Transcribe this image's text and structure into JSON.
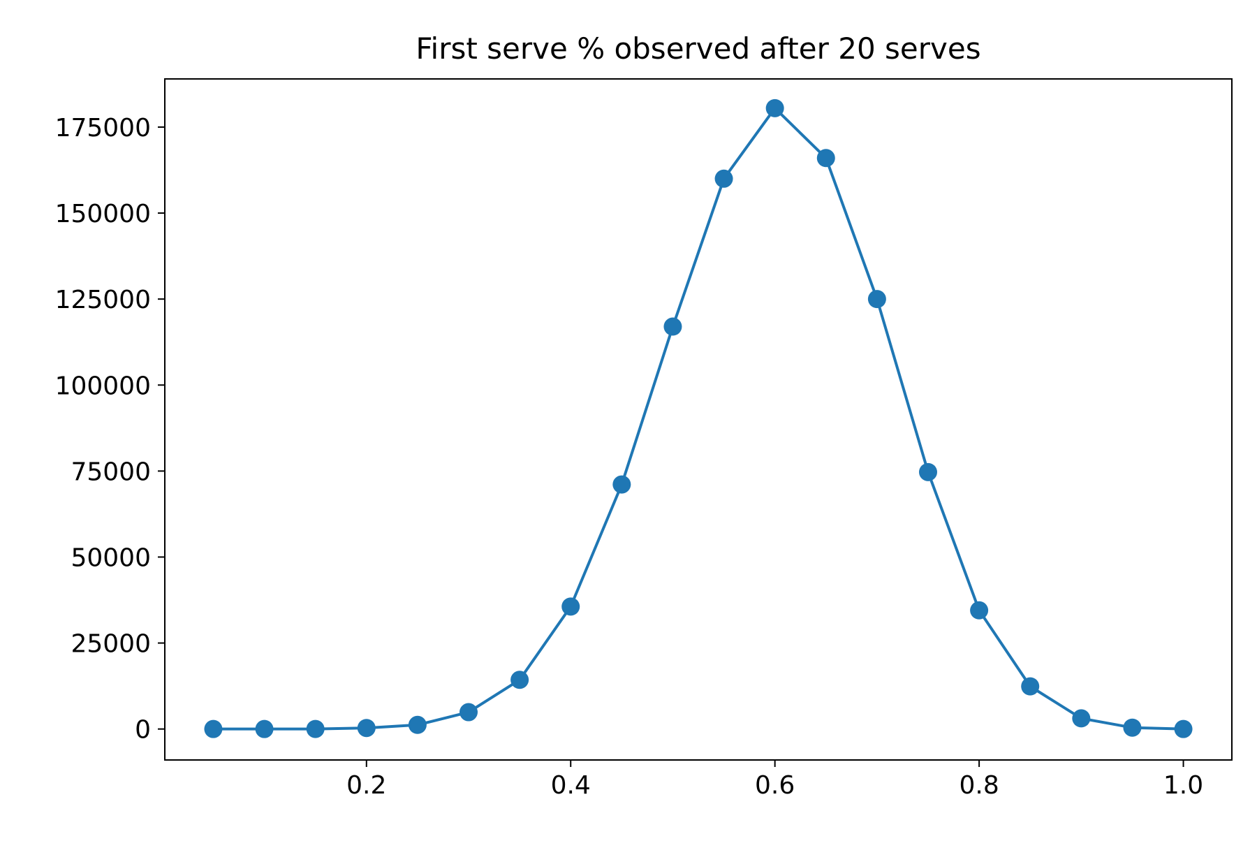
{
  "chart_data": {
    "type": "line",
    "title": "First serve % observed after 20 serves",
    "xlabel": "",
    "ylabel": "",
    "xlim": [
      0.0025,
      1.0475
    ],
    "ylim": [
      -9000,
      189000
    ],
    "x_ticks": [
      {
        "value": 0.2,
        "label": "0.2"
      },
      {
        "value": 0.4,
        "label": "0.4"
      },
      {
        "value": 0.6,
        "label": "0.6"
      },
      {
        "value": 0.8,
        "label": "0.8"
      },
      {
        "value": 1.0,
        "label": "1.0"
      }
    ],
    "y_ticks": [
      {
        "value": 0,
        "label": "0"
      },
      {
        "value": 25000,
        "label": "25000"
      },
      {
        "value": 50000,
        "label": "50000"
      },
      {
        "value": 75000,
        "label": "75000"
      },
      {
        "value": 100000,
        "label": "100000"
      },
      {
        "value": 125000,
        "label": "125000"
      },
      {
        "value": 150000,
        "label": "150000"
      },
      {
        "value": 175000,
        "label": "175000"
      }
    ],
    "grid": false,
    "series": [
      {
        "color": "#1f77b4",
        "marker": "circle",
        "x": [
          0.05,
          0.1,
          0.15,
          0.2,
          0.25,
          0.3,
          0.35,
          0.4,
          0.45,
          0.5,
          0.55,
          0.6,
          0.65,
          0.7,
          0.75,
          0.8,
          0.85,
          0.9,
          0.95,
          1.0
        ],
        "y": [
          0,
          0,
          20,
          300,
          1200,
          4900,
          14300,
          35600,
          71100,
          117000,
          160000,
          180500,
          166000,
          125000,
          74700,
          34500,
          12400,
          3100,
          400,
          0
        ]
      }
    ]
  }
}
